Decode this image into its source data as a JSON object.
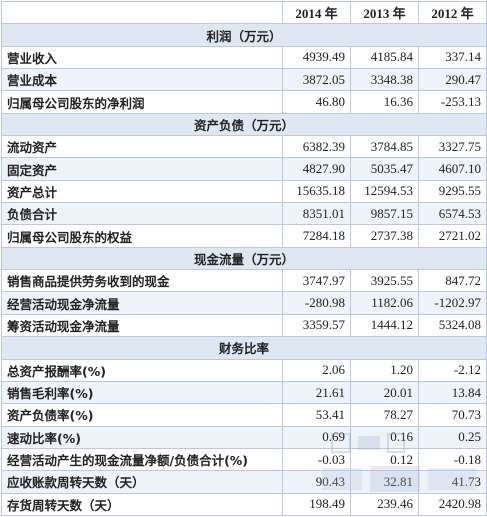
{
  "years": [
    "2014 年",
    "2013 年",
    "2012 年"
  ],
  "sections": [
    {
      "title": "利润（万元）",
      "rows": [
        {
          "label": "营业收入",
          "values": [
            "4939.49",
            "4185.84",
            "337.14"
          ]
        },
        {
          "label": "营业成本",
          "values": [
            "3872.05",
            "3348.38",
            "290.47"
          ]
        },
        {
          "label": "归属母公司股东的净利润",
          "values": [
            "46.80",
            "16.36",
            "-253.13"
          ]
        }
      ]
    },
    {
      "title": "资产负债（万元）",
      "rows": [
        {
          "label": "流动资产",
          "values": [
            "6382.39",
            "3784.85",
            "3327.75"
          ]
        },
        {
          "label": "固定资产",
          "values": [
            "4827.90",
            "5035.47",
            "4607.10"
          ]
        },
        {
          "label": "资产总计",
          "values": [
            "15635.18",
            "12594.53",
            "9295.55"
          ]
        },
        {
          "label": "负债合计",
          "values": [
            "8351.01",
            "9857.15",
            "6574.53"
          ]
        },
        {
          "label": "归属母公司股东的权益",
          "values": [
            "7284.18",
            "2737.38",
            "2721.02"
          ]
        }
      ]
    },
    {
      "title": "现金流量（万元）",
      "rows": [
        {
          "label": "销售商品提供劳务收到的现金",
          "values": [
            "3747.97",
            "3925.55",
            "847.72"
          ]
        },
        {
          "label": "经营活动现金净流量",
          "values": [
            "-280.98",
            "1182.06",
            "-1202.97"
          ]
        },
        {
          "label": "筹资活动现金净流量",
          "values": [
            "3359.57",
            "1444.12",
            "5324.08"
          ]
        }
      ]
    },
    {
      "title": "财务比率",
      "rows": [
        {
          "label": "总资产报酬率(%)",
          "values": [
            "2.06",
            "1.20",
            "-2.12"
          ]
        },
        {
          "label": "销售毛利率(%)",
          "values": [
            "21.61",
            "20.01",
            "13.84"
          ]
        },
        {
          "label": "资产负债率(%)",
          "values": [
            "53.41",
            "78.27",
            "70.73"
          ]
        },
        {
          "label": "速动比率(%)",
          "values": [
            "0.69",
            "0.16",
            "0.25"
          ]
        },
        {
          "label": "经营活动产生的现金流量净额/负债合计(%)",
          "values": [
            "-0.03",
            "0.12",
            "-0.18"
          ]
        },
        {
          "label": "应收账款周转天数（天）",
          "values": [
            "90.43",
            "32.81",
            "41.73"
          ]
        },
        {
          "label": "存货周转天数（天）",
          "values": [
            "198.49",
            "239.46",
            "2420.98"
          ]
        }
      ]
    }
  ],
  "colors": {
    "border": "#b9c9e0",
    "section_bg": "#dfe7f3",
    "alt_row_bg": "#eef3fa"
  }
}
